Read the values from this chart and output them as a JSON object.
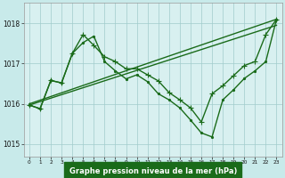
{
  "title": "Graphe pression niveau de la mer (hPa)",
  "bg_color": "#c8eaea",
  "plot_bg_color": "#d8f0f0",
  "grid_color": "#a0cccc",
  "line_color": "#1a6b1a",
  "xlim": [
    -0.5,
    23.5
  ],
  "ylim": [
    1014.7,
    1018.5
  ],
  "yticks": [
    1015,
    1016,
    1017,
    1018
  ],
  "xticks": [
    0,
    1,
    2,
    3,
    4,
    5,
    6,
    7,
    8,
    9,
    10,
    11,
    12,
    13,
    14,
    15,
    16,
    17,
    18,
    19,
    20,
    21,
    22,
    23
  ],
  "xlabel_bg": "#1a6b1a",
  "series": [
    {
      "x": [
        0,
        1,
        2,
        3,
        4,
        5,
        6,
        7,
        8,
        9,
        10,
        11,
        12,
        13,
        14,
        15,
        16,
        17,
        18,
        19,
        20,
        21,
        22,
        23
      ],
      "y": [
        1015.97,
        1015.88,
        1016.58,
        1016.52,
        1017.25,
        1017.72,
        1017.45,
        1017.17,
        1017.05,
        1016.87,
        1016.87,
        1016.72,
        1016.57,
        1016.28,
        1016.1,
        1015.9,
        1015.55,
        1016.25,
        1016.45,
        1016.7,
        1016.95,
        1017.05,
        1017.72,
        1018.1
      ],
      "marker": "+",
      "markersize": 4,
      "linewidth": 1.0,
      "color": "#1a6b1a"
    },
    {
      "x": [
        0,
        1,
        2,
        3,
        4,
        5,
        6,
        7,
        8,
        9,
        10,
        11,
        12,
        13,
        14,
        15,
        16,
        17,
        18,
        19,
        20,
        21,
        22,
        23
      ],
      "y": [
        1015.97,
        1015.88,
        1016.58,
        1016.52,
        1017.25,
        1017.52,
        1017.68,
        1017.05,
        1016.82,
        1016.62,
        1016.72,
        1016.55,
        1016.25,
        1016.1,
        1015.9,
        1015.6,
        1015.28,
        1015.18,
        1016.1,
        1016.35,
        1016.63,
        1016.82,
        1017.05,
        1018.1
      ],
      "marker": ".",
      "markersize": 3,
      "linewidth": 1.0,
      "color": "#1a6b1a"
    },
    {
      "x": [
        0,
        23
      ],
      "y": [
        1016.0,
        1018.1
      ],
      "marker": "None",
      "markersize": 0,
      "linewidth": 1.0,
      "color": "#1a6b1a"
    },
    {
      "x": [
        0,
        23
      ],
      "y": [
        1015.97,
        1017.95
      ],
      "marker": "None",
      "markersize": 0,
      "linewidth": 1.0,
      "color": "#1a6b1a"
    }
  ]
}
